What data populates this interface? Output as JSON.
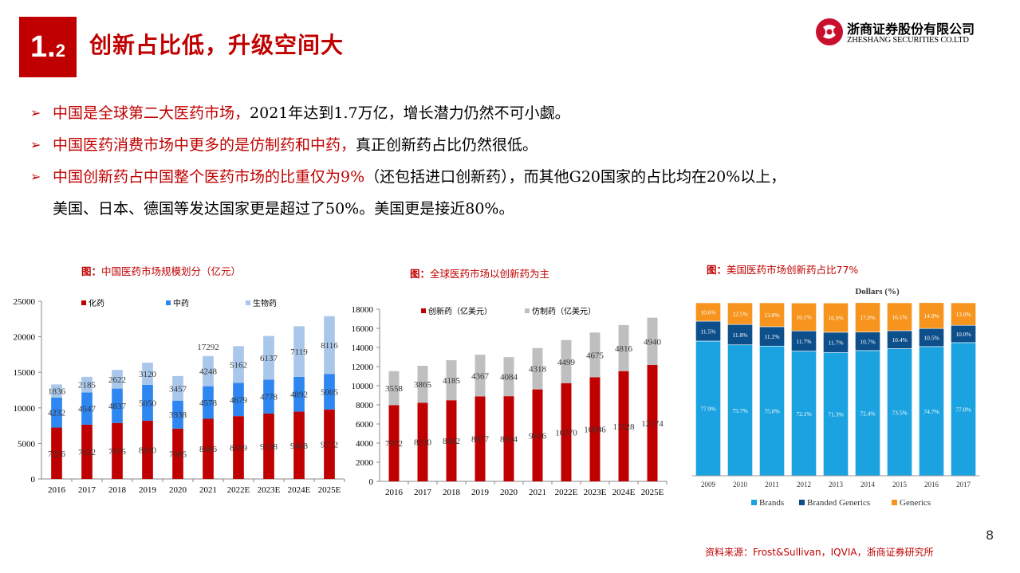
{
  "section": {
    "number": "1.",
    "sub": "2",
    "title": "创新占比低，升级空间大"
  },
  "logo": {
    "cn": "浙商证券股份有限公司",
    "en": "ZHESHANG SECURITIES CO.LTD"
  },
  "bullets": [
    {
      "red": "中国是全球第二大医药市场，",
      "rest": "2021年达到1.7万亿，增长潜力仍然不可小觑。"
    },
    {
      "red": "中国医药消费市场中更多的是仿制药和中药，",
      "rest": "真正创新药占比仍然很低。"
    },
    {
      "red": "中国创新药占中国整个医药市场的比重仅为9%",
      "rest": "（还包括进口创新药），而其他G20国家的占比均在20%以上，"
    },
    {
      "red": "",
      "rest": "美国、日本、德国等发达国家更是超过了50%。美国更是接近80%。"
    }
  ],
  "charts": [
    {
      "caption_prefix": "图：",
      "caption": "中国医药市场规模划分（亿元）"
    },
    {
      "caption_prefix": "图：",
      "caption": "全球医药市场以创新药为主"
    },
    {
      "caption_prefix": "图：",
      "caption": "美国医药市场创新药占比77%"
    }
  ],
  "chart_data": [
    {
      "type": "bar",
      "stacked": true,
      "categories": [
        "2016",
        "2017",
        "2018",
        "2019",
        "2020",
        "2021",
        "2022E",
        "2023E",
        "2024E",
        "2025E"
      ],
      "series": [
        {
          "name": "化药",
          "color": "#c00000",
          "values": [
            7226,
            7632,
            7875,
            8190,
            7085,
            8466,
            8839,
            9198,
            9468,
            9772
          ]
        },
        {
          "name": "中药",
          "color": "#2e86f0",
          "values": [
            4232,
            4547,
            4837,
            5050,
            3938,
            4578,
            4679,
            4778,
            4892,
            5005
          ]
        },
        {
          "name": "生物药",
          "color": "#a9c7ea",
          "values": [
            1836,
            2185,
            2622,
            3120,
            3457,
            4248,
            5162,
            6137,
            7119,
            8116
          ]
        }
      ],
      "totals": [
        null,
        null,
        null,
        null,
        null,
        "17292",
        null,
        null,
        null,
        null
      ],
      "ylim": [
        0,
        25000
      ],
      "yticks": [
        "0",
        "5000",
        "10000",
        "15000",
        "20000",
        "25000"
      ],
      "legend": "top"
    },
    {
      "type": "bar",
      "stacked": true,
      "categories": [
        "2016",
        "2017",
        "2018",
        "2019",
        "2020",
        "2021",
        "2022E",
        "2023E",
        "2024E",
        "2025E"
      ],
      "series": [
        {
          "name": "创新药（亿美元）",
          "color": "#c00000",
          "values": [
            7972,
            8220,
            8482,
            8877,
            8904,
            9616,
            10270,
            10886,
            11528,
            12174
          ]
        },
        {
          "name": "仿制药（亿美元）",
          "color": "#bfbfbf",
          "values": [
            3558,
            3865,
            4185,
            4367,
            4084,
            4318,
            4499,
            4675,
            4816,
            4940
          ]
        }
      ],
      "ylim": [
        0,
        18000
      ],
      "yticks": [
        "0",
        "2000",
        "4000",
        "6000",
        "8000",
        "10000",
        "12000",
        "14000",
        "16000",
        "18000"
      ],
      "legend": "top"
    },
    {
      "type": "bar",
      "stacked": true,
      "percent": true,
      "title": "Dollars  (%)",
      "categories": [
        "2009",
        "2010",
        "2011",
        "2012",
        "2013",
        "2014",
        "2015",
        "2016",
        "2017"
      ],
      "series": [
        {
          "name": "Brands",
          "color": "#1aa3e0",
          "values": [
            77.9,
            75.7,
            75.0,
            72.1,
            71.3,
            72.4,
            73.5,
            74.7,
            77.0
          ],
          "labels": [
            "77.9%",
            "75.7%",
            "75.0%",
            "72.1%",
            "71.3%",
            "72.4%",
            "73.5%",
            "74.7%",
            "77.0%"
          ]
        },
        {
          "name": "Branded Generics",
          "color": "#0d4f8b",
          "values": [
            11.5,
            11.8,
            11.2,
            11.7,
            11.7,
            10.7,
            10.4,
            10.5,
            10.0
          ],
          "labels": [
            "11.5%",
            "11.8%",
            "11.2%",
            "11.7%",
            "11.7%",
            "10.7%",
            "10.4%",
            "10.5%",
            "10.0%"
          ]
        },
        {
          "name": "Generics",
          "color": "#f7941d",
          "values": [
            10.6,
            12.5,
            13.8,
            16.1,
            16.9,
            17.0,
            16.1,
            14.9,
            13.0
          ],
          "labels": [
            "10.6%",
            "12.5%",
            "13.8%",
            "16.1%",
            "16.9%",
            "17.0%",
            "16.1%",
            "14.9%",
            "13.0%"
          ]
        }
      ],
      "legend": "bottom"
    }
  ],
  "source": "资料来源：Frost&Sullivan，IQVIA，浙商证券研究所",
  "page_number": "8"
}
